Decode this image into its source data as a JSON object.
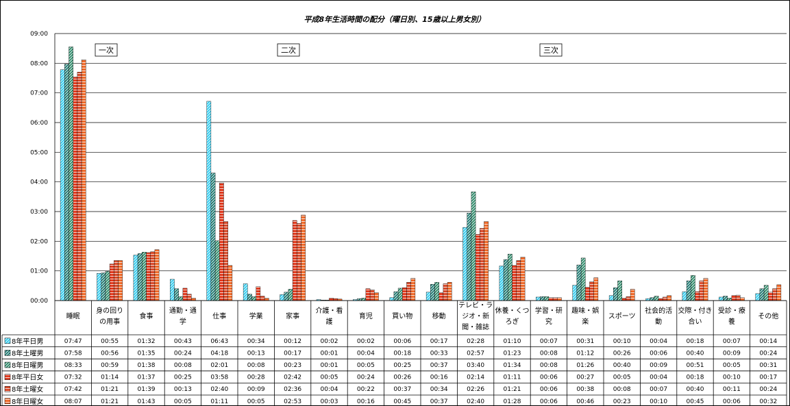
{
  "chart_data": {
    "type": "bar",
    "title": "平成8年生活時間の配分（曜日別、15歳以上男女別）",
    "y_ticks": [
      "00:00",
      "01:00",
      "02:00",
      "03:00",
      "04:00",
      "05:00",
      "06:00",
      "07:00",
      "08:00",
      "09:00"
    ],
    "ylim": [
      0,
      540
    ],
    "ylabel": "",
    "xlabel": "",
    "grid": true,
    "bands": [
      "一次",
      "二次",
      "三次"
    ],
    "categories": [
      [
        "睡眠"
      ],
      [
        "身の回り",
        "の用事"
      ],
      [
        "食事"
      ],
      [
        "通勤・通",
        "学"
      ],
      [
        "仕事"
      ],
      [
        "学業"
      ],
      [
        "家事"
      ],
      [
        "介護・看",
        "護"
      ],
      [
        "育児"
      ],
      [
        "買い物"
      ],
      [
        "移動"
      ],
      [
        "テレビ・ラ",
        "ジオ・新",
        "聞・雑誌"
      ],
      [
        "休養・くつ",
        "ろぎ"
      ],
      [
        "学習・研",
        "究"
      ],
      [
        "趣味・娯",
        "楽"
      ],
      [
        "スポーツ"
      ],
      [
        "社会的活",
        "動"
      ],
      [
        "交際・付き",
        "合い"
      ],
      [
        "受診・療",
        "養"
      ],
      [
        "その他"
      ]
    ],
    "series": [
      {
        "name": "8年平日男",
        "color": "#33ccee",
        "pattern": "diag",
        "labels": [
          "07:47",
          "00:55",
          "01:32",
          "00:43",
          "06:43",
          "00:34",
          "00:12",
          "00:02",
          "00:02",
          "00:06",
          "00:17",
          "02:28",
          "01:10",
          "00:07",
          "00:31",
          "00:10",
          "00:04",
          "00:18",
          "00:07",
          "00:14"
        ],
        "values": [
          467,
          55,
          92,
          43,
          403,
          34,
          12,
          2,
          2,
          6,
          17,
          148,
          70,
          7,
          31,
          10,
          4,
          18,
          7,
          14
        ]
      },
      {
        "name": "8年土曜男",
        "color": "#1f7a72",
        "pattern": "diag",
        "labels": [
          "07:58",
          "00:56",
          "01:35",
          "00:24",
          "04:18",
          "00:13",
          "00:17",
          "00:01",
          "00:04",
          "00:18",
          "00:33",
          "02:57",
          "01:23",
          "00:08",
          "01:12",
          "00:26",
          "00:06",
          "00:40",
          "00:09",
          "00:24"
        ],
        "values": [
          478,
          56,
          95,
          24,
          258,
          13,
          17,
          1,
          4,
          18,
          33,
          177,
          83,
          8,
          72,
          26,
          6,
          40,
          9,
          24
        ]
      },
      {
        "name": "8年日曜男",
        "color": "#2e8a6a",
        "pattern": "diag",
        "labels": [
          "08:33",
          "00:59",
          "01:38",
          "00:08",
          "02:01",
          "00:08",
          "00:23",
          "00:01",
          "00:05",
          "00:25",
          "00:37",
          "03:40",
          "01:34",
          "00:08",
          "01:26",
          "00:40",
          "00:09",
          "00:51",
          "00:05",
          "00:31"
        ],
        "values": [
          513,
          59,
          98,
          8,
          121,
          8,
          23,
          1,
          5,
          25,
          37,
          220,
          94,
          8,
          86,
          40,
          9,
          51,
          5,
          31
        ]
      },
      {
        "name": "8年平日女",
        "color": "#e03a1e",
        "pattern": "horiz",
        "labels": [
          "07:32",
          "01:14",
          "01:37",
          "00:25",
          "03:58",
          "00:28",
          "02:42",
          "00:05",
          "00:24",
          "00:26",
          "00:16",
          "02:14",
          "01:11",
          "00:06",
          "00:27",
          "00:05",
          "00:04",
          "00:18",
          "00:10",
          "00:17"
        ],
        "values": [
          452,
          74,
          97,
          25,
          238,
          28,
          162,
          5,
          24,
          26,
          16,
          134,
          71,
          6,
          27,
          5,
          4,
          18,
          10,
          17
        ]
      },
      {
        "name": "8年土曜女",
        "color": "#d84a2a",
        "pattern": "horiz",
        "labels": [
          "07:42",
          "01:21",
          "01:39",
          "00:13",
          "02:40",
          "00:09",
          "02:36",
          "00:04",
          "00:22",
          "00:37",
          "00:34",
          "02:26",
          "01:21",
          "00:06",
          "00:38",
          "00:08",
          "00:07",
          "00:40",
          "00:11",
          "00:24"
        ],
        "values": [
          462,
          81,
          99,
          13,
          160,
          9,
          156,
          4,
          22,
          37,
          34,
          146,
          81,
          6,
          38,
          8,
          7,
          40,
          11,
          24
        ]
      },
      {
        "name": "8年日曜女",
        "color": "#f06a2a",
        "pattern": "horiz",
        "labels": [
          "08:07",
          "01:21",
          "01:43",
          "00:05",
          "01:11",
          "00:05",
          "02:53",
          "00:03",
          "00:16",
          "00:45",
          "00:37",
          "02:40",
          "01:28",
          "00:06",
          "00:46",
          "00:23",
          "00:10",
          "00:45",
          "00:06",
          "00:32"
        ],
        "values": [
          487,
          81,
          103,
          5,
          71,
          5,
          173,
          3,
          16,
          45,
          37,
          160,
          88,
          6,
          46,
          23,
          10,
          45,
          6,
          32
        ]
      }
    ]
  }
}
